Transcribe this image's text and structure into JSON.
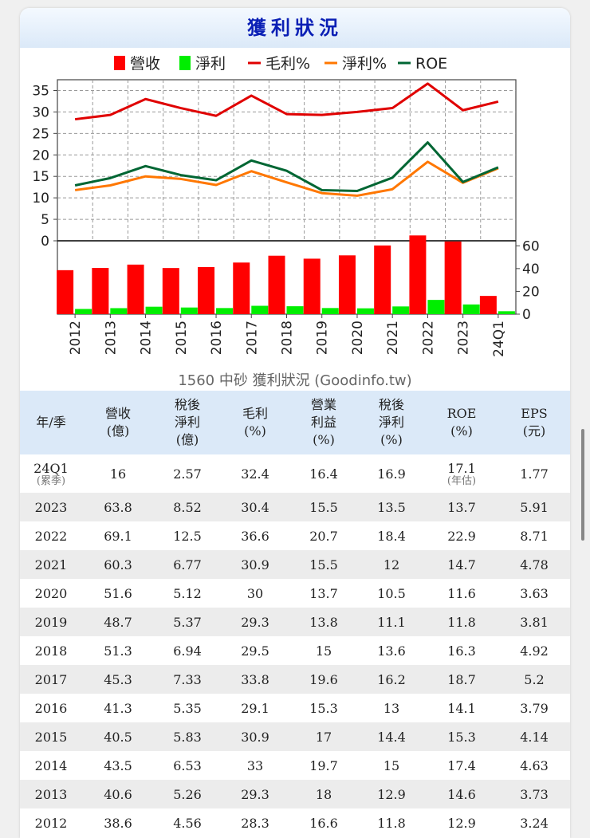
{
  "title": "獲利狀況",
  "chart_data": {
    "type": "line+bar",
    "caption": "1560 中砂 獲利狀況 (Goodinfo.tw)",
    "categories": [
      "2012",
      "2013",
      "2014",
      "2015",
      "2016",
      "2017",
      "2018",
      "2019",
      "2020",
      "2021",
      "2022",
      "2023",
      "24Q1"
    ],
    "legend": [
      {
        "name": "營收",
        "kind": "bar",
        "color": "#ff0000"
      },
      {
        "name": "淨利",
        "kind": "bar",
        "color": "#00ee00"
      },
      {
        "name": "毛利%",
        "kind": "line",
        "color": "#e00000"
      },
      {
        "name": "淨利%",
        "kind": "line",
        "color": "#ff7700"
      },
      {
        "name": "ROE",
        "kind": "line",
        "color": "#006633"
      }
    ],
    "line_axis": {
      "ticks": [
        0,
        5,
        10,
        15,
        20,
        25,
        30,
        35
      ],
      "range": [
        0,
        37.5
      ]
    },
    "bar_axis": {
      "ticks": [
        0,
        20,
        40,
        60
      ],
      "range": [
        0,
        70
      ]
    },
    "lines": [
      {
        "name": "毛利%",
        "color": "#e00000",
        "values": [
          28.3,
          29.3,
          33,
          30.9,
          29.1,
          33.8,
          29.5,
          29.3,
          30,
          30.9,
          36.6,
          30.4,
          32.4
        ]
      },
      {
        "name": "淨利%",
        "color": "#ff7700",
        "values": [
          11.8,
          12.9,
          15,
          14.4,
          13,
          16.2,
          13.6,
          11.1,
          10.5,
          12,
          18.4,
          13.5,
          16.9
        ]
      },
      {
        "name": "ROE",
        "color": "#006633",
        "values": [
          12.9,
          14.6,
          17.4,
          15.3,
          14.1,
          18.7,
          16.3,
          11.8,
          11.6,
          14.7,
          22.9,
          13.7,
          17.1
        ]
      }
    ],
    "bars": [
      {
        "name": "營收",
        "color": "#ff0000",
        "values": [
          38.6,
          40.6,
          43.5,
          40.5,
          41.3,
          45.3,
          51.3,
          48.7,
          51.6,
          60.3,
          69.1,
          63.8,
          16
        ]
      },
      {
        "name": "淨利",
        "color": "#00ee00",
        "values": [
          4.56,
          5.26,
          6.53,
          5.83,
          5.35,
          7.33,
          6.94,
          5.37,
          5.12,
          6.77,
          12.5,
          8.52,
          2.57
        ]
      }
    ]
  },
  "table": {
    "headers": [
      {
        "l1": "年/季",
        "l2": "",
        "l3": ""
      },
      {
        "l1": "營收",
        "l2": "(億)",
        "l3": ""
      },
      {
        "l1": "稅後",
        "l2": "淨利",
        "l3": "(億)"
      },
      {
        "l1": "毛利",
        "l2": "(%)",
        "l3": ""
      },
      {
        "l1": "營業",
        "l2": "利益",
        "l3": "(%)"
      },
      {
        "l1": "稅後",
        "l2": "淨利",
        "l3": "(%)"
      },
      {
        "l1": "ROE",
        "l2": "(%)",
        "l3": ""
      },
      {
        "l1": "EPS",
        "l2": "(元)",
        "l3": ""
      }
    ],
    "rows": [
      {
        "year": "24Q1",
        "year_note": "(累季)",
        "revenue": "16",
        "net_income": "2.57",
        "gross_margin": "32.4",
        "op_margin": "16.4",
        "net_margin": "16.9",
        "roe": "17.1",
        "roe_note": "(年估)",
        "eps": "1.77"
      },
      {
        "year": "2023",
        "revenue": "63.8",
        "net_income": "8.52",
        "gross_margin": "30.4",
        "op_margin": "15.5",
        "net_margin": "13.5",
        "roe": "13.7",
        "eps": "5.91"
      },
      {
        "year": "2022",
        "revenue": "69.1",
        "net_income": "12.5",
        "gross_margin": "36.6",
        "op_margin": "20.7",
        "net_margin": "18.4",
        "roe": "22.9",
        "eps": "8.71"
      },
      {
        "year": "2021",
        "revenue": "60.3",
        "net_income": "6.77",
        "gross_margin": "30.9",
        "op_margin": "15.5",
        "net_margin": "12",
        "roe": "14.7",
        "eps": "4.78"
      },
      {
        "year": "2020",
        "revenue": "51.6",
        "net_income": "5.12",
        "gross_margin": "30",
        "op_margin": "13.7",
        "net_margin": "10.5",
        "roe": "11.6",
        "eps": "3.63"
      },
      {
        "year": "2019",
        "revenue": "48.7",
        "net_income": "5.37",
        "gross_margin": "29.3",
        "op_margin": "13.8",
        "net_margin": "11.1",
        "roe": "11.8",
        "eps": "3.81"
      },
      {
        "year": "2018",
        "revenue": "51.3",
        "net_income": "6.94",
        "gross_margin": "29.5",
        "op_margin": "15",
        "net_margin": "13.6",
        "roe": "16.3",
        "eps": "4.92"
      },
      {
        "year": "2017",
        "revenue": "45.3",
        "net_income": "7.33",
        "gross_margin": "33.8",
        "op_margin": "19.6",
        "net_margin": "16.2",
        "roe": "18.7",
        "eps": "5.2"
      },
      {
        "year": "2016",
        "revenue": "41.3",
        "net_income": "5.35",
        "gross_margin": "29.1",
        "op_margin": "15.3",
        "net_margin": "13",
        "roe": "14.1",
        "eps": "3.79"
      },
      {
        "year": "2015",
        "revenue": "40.5",
        "net_income": "5.83",
        "gross_margin": "30.9",
        "op_margin": "17",
        "net_margin": "14.4",
        "roe": "15.3",
        "eps": "4.14"
      },
      {
        "year": "2014",
        "revenue": "43.5",
        "net_income": "6.53",
        "gross_margin": "33",
        "op_margin": "19.7",
        "net_margin": "15",
        "roe": "17.4",
        "eps": "4.63"
      },
      {
        "year": "2013",
        "revenue": "40.6",
        "net_income": "5.26",
        "gross_margin": "29.3",
        "op_margin": "18",
        "net_margin": "12.9",
        "roe": "14.6",
        "eps": "3.73"
      },
      {
        "year": "2012",
        "revenue": "38.6",
        "net_income": "4.56",
        "gross_margin": "28.3",
        "op_margin": "16.6",
        "net_margin": "11.8",
        "roe": "12.9",
        "eps": "3.24"
      }
    ]
  }
}
